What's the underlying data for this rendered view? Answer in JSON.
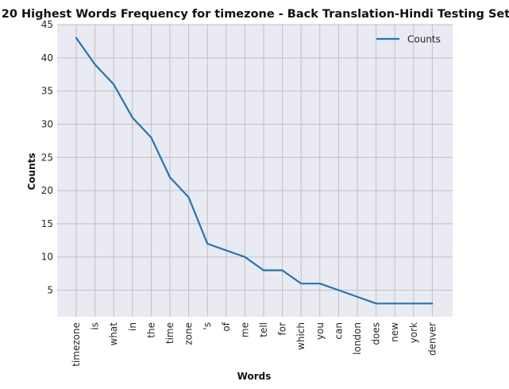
{
  "chart_data": {
    "type": "line",
    "title": "20 Highest Words Frequency for timezone - Back Translation-Hindi Testing Set",
    "xlabel": "Words",
    "ylabel": "Counts",
    "categories": [
      "timezone",
      "is",
      "what",
      "in",
      "the",
      "time",
      "zone",
      "'s",
      "of",
      "me",
      "tell",
      "for",
      "which",
      "you",
      "can",
      "london",
      "does",
      "new",
      "york",
      "denver"
    ],
    "series": [
      {
        "name": "Counts",
        "values": [
          43,
          39,
          36,
          31,
          28,
          22,
          19,
          12,
          11,
          10,
          8,
          8,
          6,
          6,
          5,
          4,
          3,
          3,
          3,
          3
        ],
        "color": "#1f77b4"
      }
    ],
    "ylim": [
      1,
      45
    ],
    "yticks": [
      5,
      10,
      15,
      20,
      25,
      30,
      35,
      40,
      45
    ],
    "grid": true,
    "legend": "top-right",
    "background": "#eaeaf2",
    "grid_color": "#c0c0c0"
  }
}
